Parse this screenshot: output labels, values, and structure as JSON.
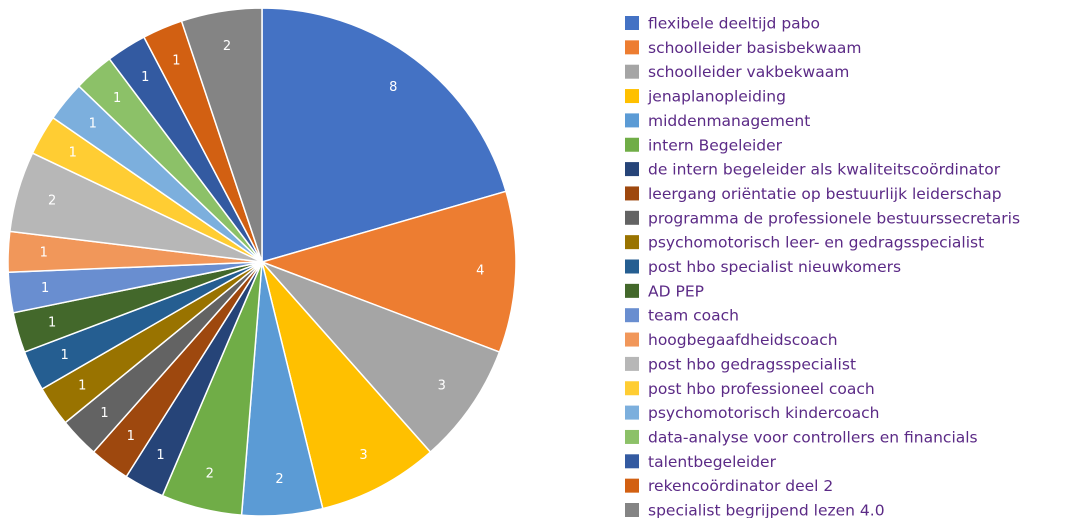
{
  "chart_data": {
    "type": "pie",
    "categories": [
      "flexibele deeltijd pabo",
      "schoolleider basisbekwaam",
      "schoolleider vakbekwaam",
      "jenaplanopleiding",
      "middenmanagement",
      "intern Begeleider",
      "de intern begeleider als kwaliteitscoördinator",
      "leergang oriëntatie op bestuurlijk leiderschap",
      "programma de professionele bestuurssecretaris",
      "psychomotorisch leer- en gedragsspecialist",
      "post hbo specialist nieuwkomers",
      "AD PEP",
      "team coach",
      "hoogbegaafdheidscoach",
      "post hbo gedragsspecialist",
      "post hbo professioneel coach",
      "psychomotorisch kindercoach",
      "data-analyse voor controllers en financials",
      "talentbegeleider",
      "rekencoördinator deel 2",
      "specialist begrijpend lezen 4.0"
    ],
    "values": [
      8,
      4,
      3,
      3,
      2,
      2,
      1,
      1,
      1,
      1,
      1,
      1,
      1,
      1,
      2,
      1,
      1,
      1,
      1,
      1,
      2
    ],
    "colors": [
      "#4472c4",
      "#ed7d31",
      "#a5a5a5",
      "#ffc000",
      "#5b9bd5",
      "#70ad47",
      "#264478",
      "#9e480e",
      "#636363",
      "#997300",
      "#255e91",
      "#43682b",
      "#698ed0",
      "#f1975a",
      "#b7b7b7",
      "#ffcd33",
      "#7cafdd",
      "#8cc168",
      "#335aa1",
      "#d26012",
      "#848484"
    ],
    "legend": "right"
  }
}
